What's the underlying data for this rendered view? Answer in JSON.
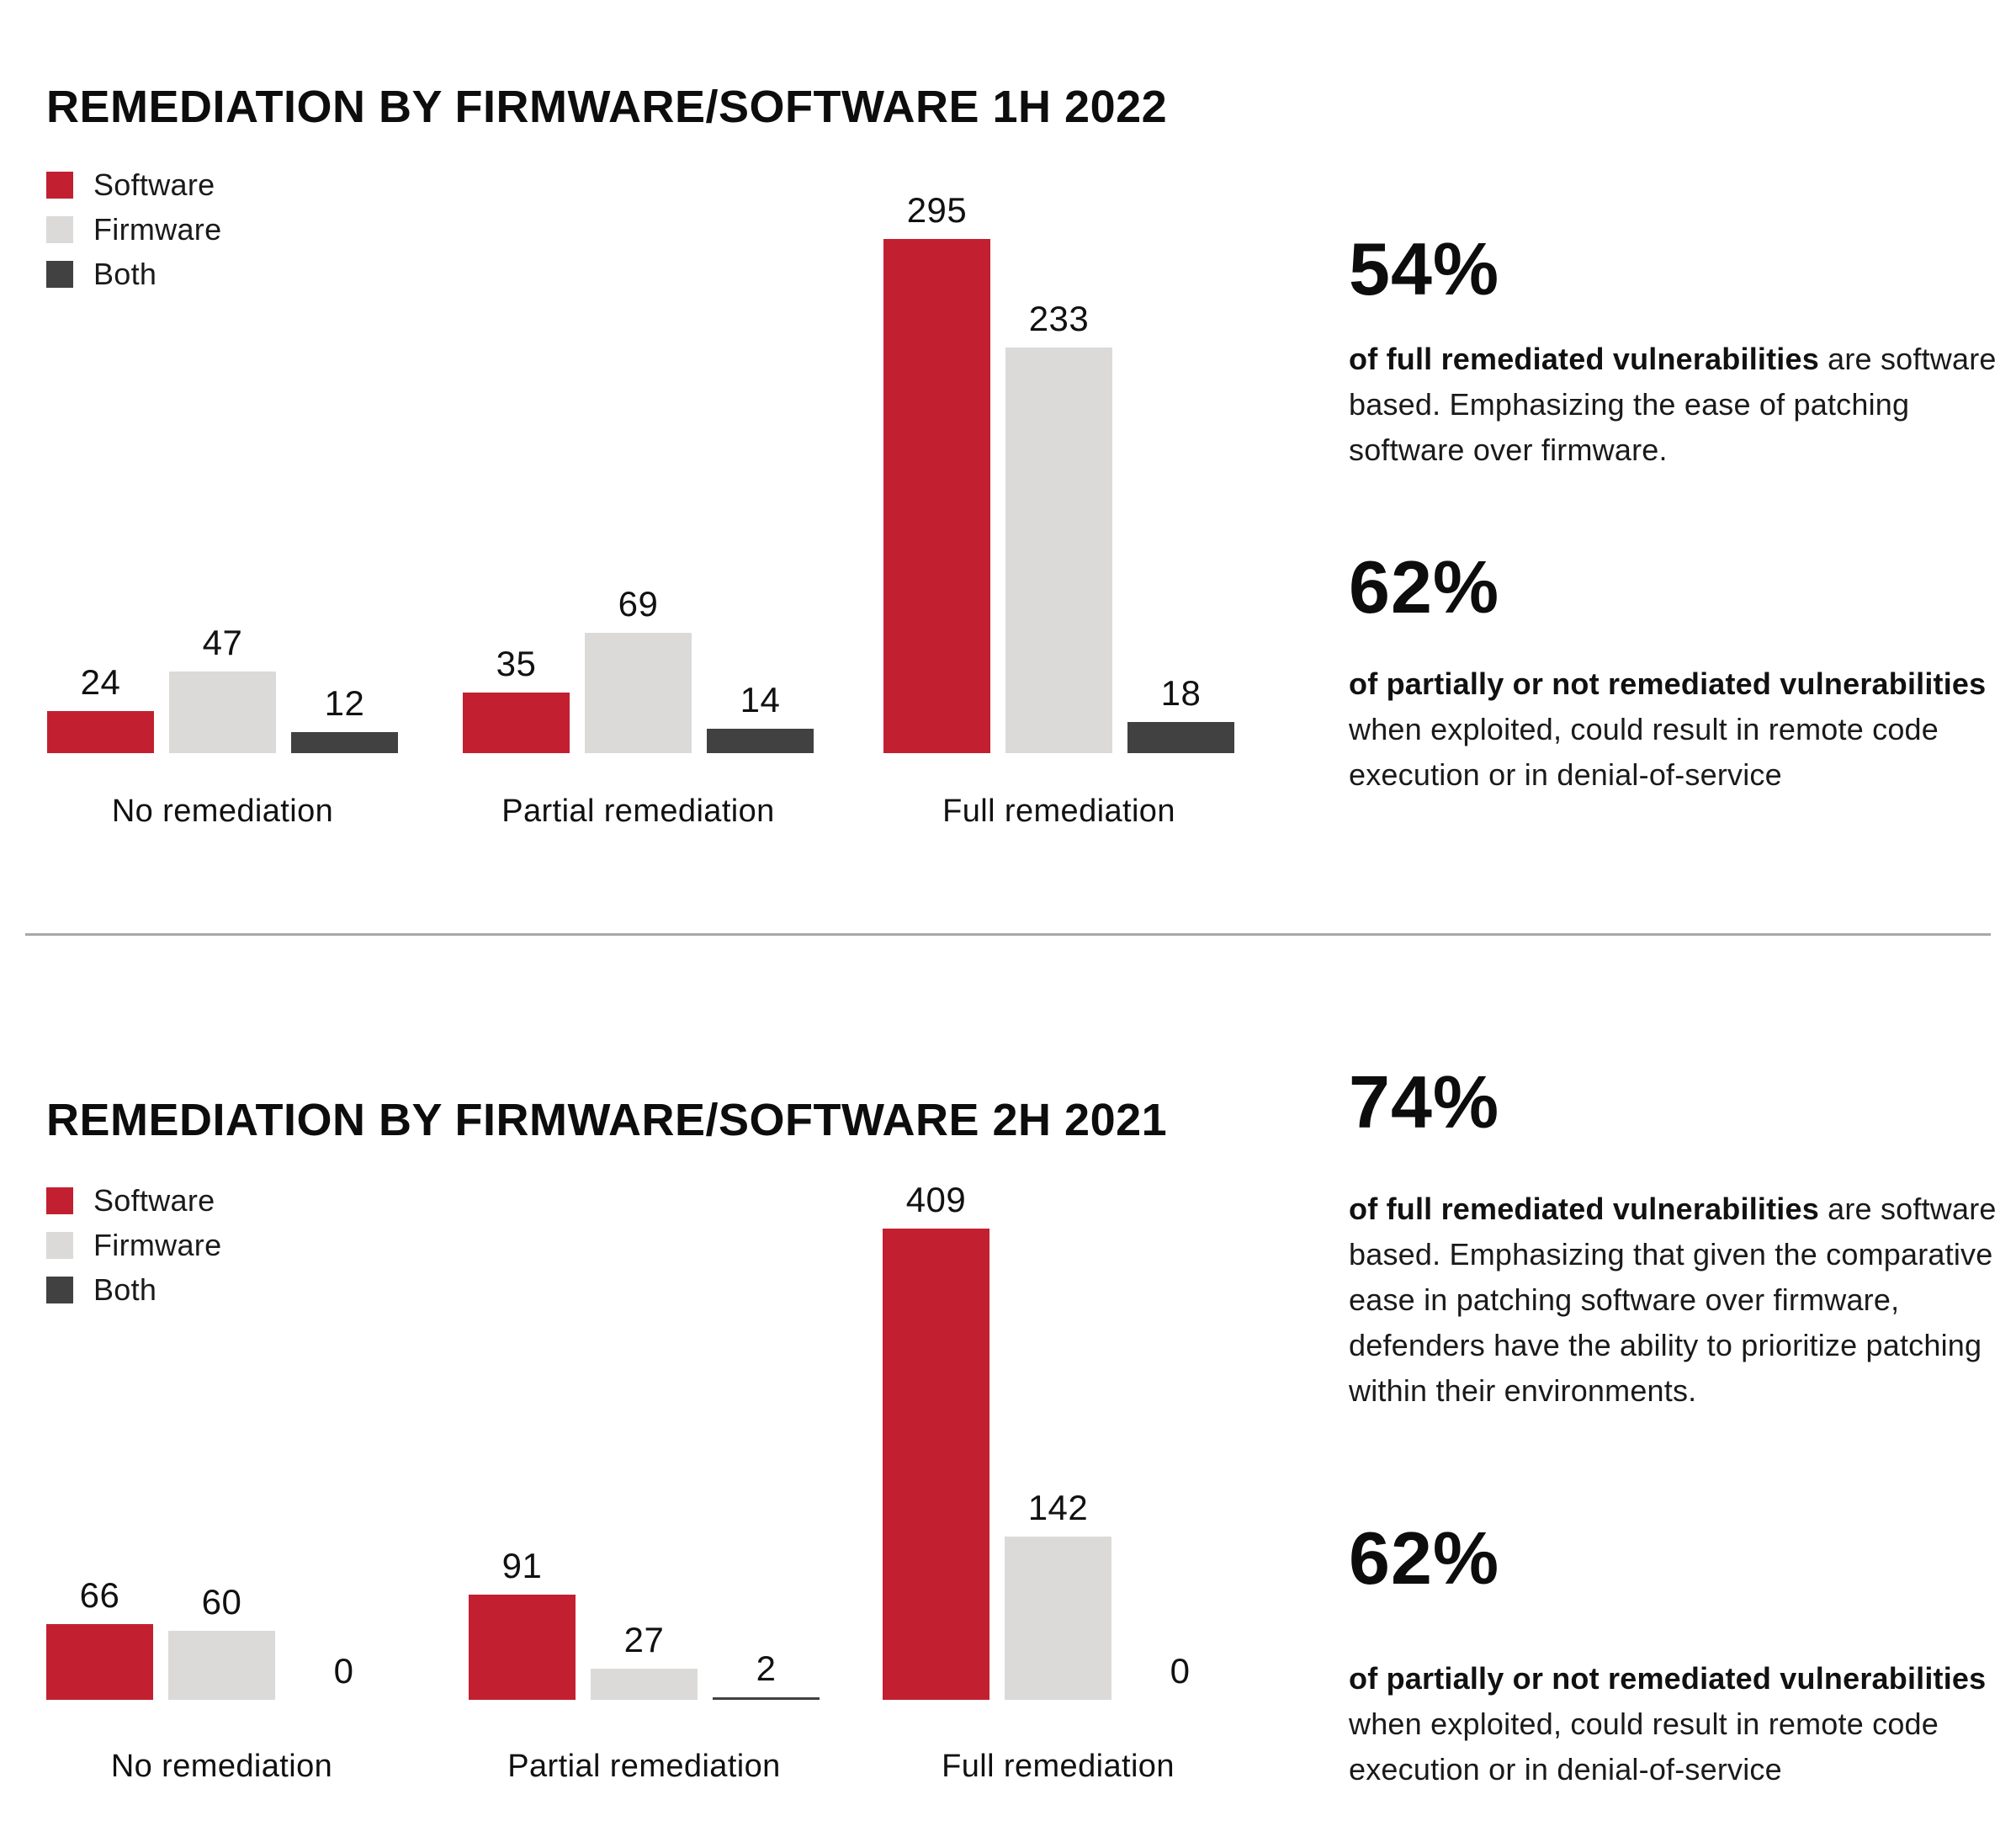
{
  "colors": {
    "software": "#c22030",
    "firmware": "#dbdad8",
    "both": "#414141",
    "divider": "#a8a8a8",
    "text": "#1a1a1a"
  },
  "sections": [
    {
      "title": "REMEDIATION BY FIRMWARE/SOFTWARE 1H 2022",
      "legend": [
        "Software",
        "Firmware",
        "Both"
      ],
      "categories": [
        "No remediation",
        "Partial remediation",
        "Full remediation"
      ],
      "stats": [
        {
          "value": "54%",
          "lead": "of full remediated vulnerabilities",
          "rest": " are software based. Emphasizing the ease of patching software over firmware."
        },
        {
          "value": "62%",
          "lead": "of partially or not remediated vulnerabilities",
          "rest": " when exploited, could result in remote code execution or in denial-of-service"
        }
      ]
    },
    {
      "title": "REMEDIATION BY FIRMWARE/SOFTWARE 2H 2021",
      "legend": [
        "Software",
        "Firmware",
        "Both"
      ],
      "categories": [
        "No remediation",
        "Partial remediation",
        "Full remediation"
      ],
      "stats": [
        {
          "value": "74%",
          "lead": "of full remediated vulnerabilities",
          "rest": " are software based. Emphasizing that given the comparative ease in patching software over firmware, defenders have the ability to prioritize patching within their environments."
        },
        {
          "value": "62%",
          "lead": "of partially or not remediated vulnerabilities",
          "rest": " when exploited, could result in remote code execution or in denial-of-service"
        }
      ]
    }
  ],
  "chart_data": [
    {
      "type": "bar",
      "title": "REMEDIATION BY FIRMWARE/SOFTWARE 1H 2022",
      "categories": [
        "No remediation",
        "Partial remediation",
        "Full remediation"
      ],
      "series": [
        {
          "name": "Software",
          "values": [
            24,
            35,
            295
          ],
          "color": "#c22030"
        },
        {
          "name": "Firmware",
          "values": [
            47,
            69,
            233
          ],
          "color": "#dbdad8"
        },
        {
          "name": "Both",
          "values": [
            12,
            14,
            18
          ],
          "color": "#414141"
        }
      ],
      "xlabel": "",
      "ylabel": "",
      "ylim": [
        0,
        300
      ],
      "grid": false,
      "axes_visible": false,
      "legend_position": "top-left",
      "value_labels": true
    },
    {
      "type": "bar",
      "title": "REMEDIATION BY FIRMWARE/SOFTWARE 2H 2021",
      "categories": [
        "No remediation",
        "Partial remediation",
        "Full remediation"
      ],
      "series": [
        {
          "name": "Software",
          "values": [
            66,
            91,
            409
          ],
          "color": "#c22030"
        },
        {
          "name": "Firmware",
          "values": [
            60,
            27,
            142
          ],
          "color": "#dbdad8"
        },
        {
          "name": "Both",
          "values": [
            0,
            2,
            0
          ],
          "color": "#414141"
        }
      ],
      "xlabel": "",
      "ylabel": "",
      "ylim": [
        0,
        420
      ],
      "grid": false,
      "axes_visible": false,
      "legend_position": "top-left",
      "value_labels": true
    }
  ]
}
